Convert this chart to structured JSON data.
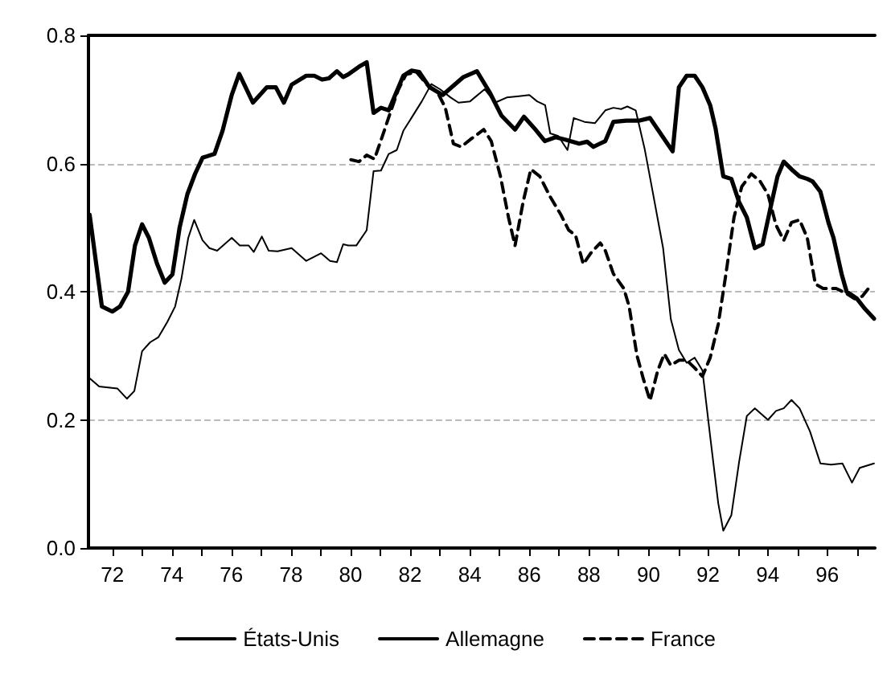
{
  "chart_data": {
    "type": "line",
    "legend": "bottom",
    "grid": "y",
    "marker": "none",
    "xlim": [
      1971.2,
      1997.6
    ],
    "xticks": [
      {
        "value": 1972,
        "label": "72"
      },
      {
        "value": 1973,
        "label": null
      },
      {
        "value": 1974,
        "label": "74"
      },
      {
        "value": 1975,
        "label": null
      },
      {
        "value": 1976,
        "label": "76"
      },
      {
        "value": 1977,
        "label": null
      },
      {
        "value": 1978,
        "label": "78"
      },
      {
        "value": 1979,
        "label": null
      },
      {
        "value": 1980,
        "label": "80"
      },
      {
        "value": 1981,
        "label": null
      },
      {
        "value": 1982,
        "label": "82"
      },
      {
        "value": 1983,
        "label": null
      },
      {
        "value": 1984,
        "label": "84"
      },
      {
        "value": 1985,
        "label": null
      },
      {
        "value": 1986,
        "label": "86"
      },
      {
        "value": 1987,
        "label": null
      },
      {
        "value": 1988,
        "label": "88"
      },
      {
        "value": 1989,
        "label": null
      },
      {
        "value": 1990,
        "label": "90"
      },
      {
        "value": 1991,
        "label": null
      },
      {
        "value": 1992,
        "label": "92"
      },
      {
        "value": 1993,
        "label": null
      },
      {
        "value": 1994,
        "label": "94"
      },
      {
        "value": 1995,
        "label": null
      },
      {
        "value": 1996,
        "label": "96"
      },
      {
        "value": 1997,
        "label": null
      }
    ],
    "ylim": [
      0,
      0.8
    ],
    "yticks": [
      {
        "value": 0,
        "label": "0.0"
      },
      {
        "value": 0.2,
        "label": "0.2"
      },
      {
        "value": 0.4,
        "label": "0.4"
      },
      {
        "value": 0.6,
        "label": "0.6"
      },
      {
        "value": 0.8,
        "label": "0.8"
      }
    ],
    "series": [
      {
        "name": "États-Unis",
        "color": "#000000",
        "line_style": "solid",
        "x": [
          1971.24,
          1971.65,
          1972.0,
          1972.26,
          1972.53,
          1972.76,
          1973.0,
          1973.23,
          1973.5,
          1973.76,
          1974.02,
          1974.26,
          1974.52,
          1974.78,
          1975.03,
          1975.43,
          1975.7,
          1976.01,
          1976.26,
          1976.72,
          1977.19,
          1977.49,
          1977.76,
          1978.02,
          1978.51,
          1978.78,
          1979.04,
          1979.27,
          1979.54,
          1979.75,
          1979.92,
          1980.28,
          1980.54,
          1980.77,
          1981.02,
          1981.28,
          1981.77,
          1982.04,
          1982.3,
          1982.65,
          1983.09,
          1983.79,
          1984.24,
          1984.67,
          1985.06,
          1985.52,
          1985.82,
          1986.17,
          1986.52,
          1986.88,
          1987.23,
          1987.67,
          1987.94,
          1988.15,
          1988.37,
          1988.55,
          1988.82,
          1989.26,
          1989.7,
          1990.05,
          1990.4,
          1990.81,
          1991.02,
          1991.28,
          1991.55,
          1991.81,
          1992.07,
          1992.25,
          1992.51,
          1992.78,
          1993.04,
          1993.3,
          1993.57,
          1993.83,
          1994.1,
          1994.33,
          1994.54,
          1994.8,
          1995.07,
          1995.33,
          1995.51,
          1995.77,
          1996.04,
          1996.21,
          1996.48,
          1996.65,
          1997.0,
          1997.27,
          1997.57
        ],
        "values": [
          0.52,
          0.377,
          0.369,
          0.377,
          0.4,
          0.472,
          0.505,
          0.484,
          0.444,
          0.414,
          0.427,
          0.5,
          0.552,
          0.584,
          0.609,
          0.615,
          0.651,
          0.707,
          0.74,
          0.695,
          0.719,
          0.719,
          0.695,
          0.723,
          0.737,
          0.737,
          0.731,
          0.733,
          0.744,
          0.735,
          0.739,
          0.751,
          0.758,
          0.679,
          0.687,
          0.683,
          0.737,
          0.745,
          0.743,
          0.719,
          0.707,
          0.735,
          0.744,
          0.711,
          0.675,
          0.653,
          0.673,
          0.655,
          0.635,
          0.641,
          0.637,
          0.631,
          0.634,
          0.626,
          0.631,
          0.635,
          0.665,
          0.667,
          0.667,
          0.671,
          0.647,
          0.619,
          0.719,
          0.737,
          0.737,
          0.719,
          0.691,
          0.655,
          0.58,
          0.576,
          0.54,
          0.516,
          0.468,
          0.474,
          0.532,
          0.58,
          0.603,
          0.591,
          0.58,
          0.576,
          0.572,
          0.556,
          0.508,
          0.484,
          0.428,
          0.4,
          0.389,
          0.373,
          0.358
        ]
      },
      {
        "name": "Allemagne",
        "color": "#000000",
        "line_style": "solid",
        "x": [
          1971.24,
          1971.56,
          1972.17,
          1972.49,
          1972.74,
          1973.0,
          1973.27,
          1973.55,
          1973.85,
          1974.11,
          1974.32,
          1974.55,
          1974.75,
          1975.03,
          1975.26,
          1975.52,
          1976.01,
          1976.28,
          1976.58,
          1976.75,
          1977.02,
          1977.25,
          1977.55,
          1978.02,
          1978.51,
          1979.01,
          1979.31,
          1979.54,
          1979.75,
          1979.92,
          1980.19,
          1980.54,
          1980.77,
          1981.02,
          1981.28,
          1981.55,
          1981.77,
          1982.04,
          1982.39,
          1982.71,
          1983.0,
          1983.36,
          1983.62,
          1984.01,
          1984.5,
          1984.85,
          1985.24,
          1985.65,
          1986.0,
          1986.26,
          1986.53,
          1986.7,
          1986.97,
          1987.28,
          1987.49,
          1987.85,
          1988.2,
          1988.55,
          1988.82,
          1989.08,
          1989.29,
          1989.57,
          1989.87,
          1990.14,
          1990.49,
          1990.75,
          1991.02,
          1991.28,
          1991.55,
          1991.81,
          1992.07,
          1992.34,
          1992.51,
          1992.78,
          1993.04,
          1993.3,
          1993.57,
          1994.01,
          1994.28,
          1994.54,
          1994.8,
          1995.07,
          1995.42,
          1995.77,
          1996.13,
          1996.51,
          1996.83,
          1997.09,
          1997.57
        ],
        "values": [
          0.265,
          0.252,
          0.249,
          0.233,
          0.245,
          0.307,
          0.321,
          0.329,
          0.353,
          0.377,
          0.42,
          0.484,
          0.512,
          0.48,
          0.468,
          0.464,
          0.484,
          0.472,
          0.472,
          0.462,
          0.486,
          0.464,
          0.463,
          0.468,
          0.448,
          0.46,
          0.448,
          0.446,
          0.474,
          0.472,
          0.472,
          0.496,
          0.588,
          0.589,
          0.615,
          0.621,
          0.651,
          0.671,
          0.697,
          0.724,
          0.716,
          0.703,
          0.695,
          0.697,
          0.716,
          0.695,
          0.703,
          0.705,
          0.707,
          0.697,
          0.691,
          0.647,
          0.643,
          0.621,
          0.671,
          0.665,
          0.663,
          0.683,
          0.687,
          0.685,
          0.689,
          0.683,
          0.623,
          0.556,
          0.468,
          0.357,
          0.309,
          0.289,
          0.297,
          0.277,
          0.174,
          0.07,
          0.027,
          0.051,
          0.134,
          0.206,
          0.218,
          0.2,
          0.214,
          0.218,
          0.231,
          0.218,
          0.182,
          0.132,
          0.13,
          0.132,
          0.102,
          0.125,
          0.132
        ]
      },
      {
        "name": "France",
        "color": "#000000",
        "line_style": "dashed",
        "x": [
          1980.01,
          1980.28,
          1980.54,
          1980.8,
          1981.07,
          1981.33,
          1981.6,
          1981.86,
          1982.21,
          1982.57,
          1982.92,
          1983.18,
          1983.45,
          1983.71,
          1984.06,
          1984.47,
          1984.72,
          1985.03,
          1985.3,
          1985.52,
          1985.79,
          1986.05,
          1986.35,
          1986.7,
          1987.06,
          1987.32,
          1987.55,
          1987.81,
          1988.06,
          1988.38,
          1988.55,
          1988.82,
          1989.17,
          1989.35,
          1989.61,
          1989.82,
          1990.05,
          1990.31,
          1990.53,
          1990.75,
          1991.02,
          1991.28,
          1991.55,
          1991.81,
          1992.07,
          1992.34,
          1992.6,
          1992.87,
          1993.13,
          1993.45,
          1993.75,
          1994.01,
          1994.28,
          1994.54,
          1994.8,
          1995.07,
          1995.33,
          1995.6,
          1995.86,
          1996.3,
          1996.65,
          1996.92,
          1997.18,
          1997.45
        ],
        "values": [
          0.606,
          0.603,
          0.613,
          0.607,
          0.643,
          0.679,
          0.715,
          0.739,
          0.743,
          0.723,
          0.711,
          0.687,
          0.631,
          0.626,
          0.639,
          0.653,
          0.635,
          0.58,
          0.516,
          0.472,
          0.54,
          0.591,
          0.58,
          0.548,
          0.52,
          0.496,
          0.488,
          0.443,
          0.46,
          0.476,
          0.464,
          0.428,
          0.405,
          0.377,
          0.301,
          0.265,
          0.23,
          0.277,
          0.303,
          0.285,
          0.293,
          0.293,
          0.281,
          0.268,
          0.297,
          0.349,
          0.428,
          0.516,
          0.564,
          0.584,
          0.572,
          0.552,
          0.504,
          0.48,
          0.508,
          0.512,
          0.484,
          0.412,
          0.405,
          0.405,
          0.397,
          0.389,
          0.393,
          0.409
        ]
      }
    ]
  }
}
